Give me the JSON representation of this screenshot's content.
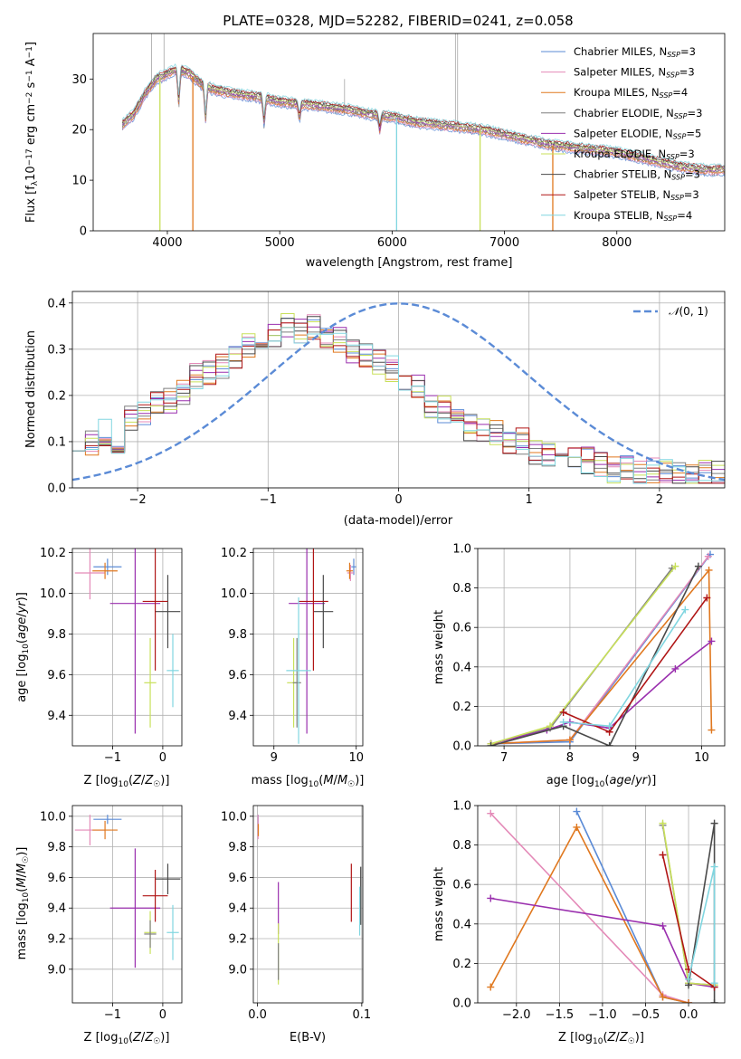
{
  "title": "PLATE=0328, MJD=52282, FIBERID=0241, z=0.058",
  "colors": {
    "Chabrier MILES": "#5b8bd6",
    "Salpeter MILES": "#e48ab8",
    "Kroupa MILES": "#e0781f",
    "Chabrier ELODIE": "#7f7f7f",
    "Salpeter ELODIE": "#9a2fae",
    "Kroupa ELODIE": "#c8e05a",
    "Chabrier STELIB": "#4a4a4a",
    "Salpeter STELIB": "#b01515",
    "Kroupa STELIB": "#80d6e0",
    "normal": "#5b8bd6"
  },
  "chart_data": [
    {
      "id": "spectrum",
      "type": "line",
      "title": "PLATE=0328, MJD=52282, FIBERID=0241, z=0.058",
      "xlabel": "wavelength [Angstrom, rest frame]",
      "ylabel": "Flux [f_λ10^-17 erg cm^-2 s^-1 A^-1]",
      "xlim": [
        3340,
        8960
      ],
      "ylim": [
        0,
        39
      ],
      "xticks": [
        4000,
        5000,
        6000,
        7000,
        8000
      ],
      "yticks": [
        0,
        10,
        20,
        30
      ],
      "grid": false,
      "legend_position": "top-right",
      "legend": [
        {
          "base": "Chabrier MILES, N",
          "sub": "SSP",
          "tail": "=3"
        },
        {
          "base": "Salpeter MILES, N",
          "sub": "SSP",
          "tail": "=3"
        },
        {
          "base": "Kroupa MILES, N",
          "sub": "SSP",
          "tail": "=4"
        },
        {
          "base": "Chabrier ELODIE, N",
          "sub": "SSP",
          "tail": "=3"
        },
        {
          "base": "Salpeter ELODIE, N",
          "sub": "SSP",
          "tail": "=5"
        },
        {
          "base": "Kroupa ELODIE, N",
          "sub": "SSP",
          "tail": "=3"
        },
        {
          "base": "Chabrier STELIB, N",
          "sub": "SSP",
          "tail": "=3"
        },
        {
          "base": "Salpeter STELIB, N",
          "sub": "SSP",
          "tail": "=3"
        },
        {
          "base": "Kroupa STELIB, N",
          "sub": "SSP",
          "tail": "=4"
        }
      ],
      "continuum": {
        "x": [
          3600,
          3700,
          3800,
          3900,
          4000,
          4100,
          4200,
          4300,
          4400,
          4500,
          4600,
          4800,
          5000,
          5200,
          5400,
          5600,
          5800,
          6000,
          6200,
          6400,
          6600,
          6800,
          7000,
          7200,
          7400,
          7600,
          7800,
          8000,
          8200,
          8400,
          8600,
          8800
        ],
        "y": [
          21,
          23,
          27,
          30,
          31,
          32,
          31,
          29,
          28,
          27.5,
          27,
          26.5,
          25.5,
          25,
          24.5,
          24,
          23,
          22.5,
          21.5,
          21,
          20.5,
          20,
          19,
          18,
          17,
          16.5,
          16,
          15.5,
          14.5,
          13.5,
          12.5,
          12
        ]
      },
      "absorption_dips": [
        {
          "x": 3934,
          "depth": 9,
          "color_series": "Kroupa ELODIE",
          "full": true
        },
        {
          "x": 4227,
          "depth": 10,
          "color_series": "Kroupa MILES",
          "full": true
        },
        {
          "x": 6040,
          "depth": 10,
          "color_series": "Kroupa STELIB",
          "full": true
        },
        {
          "x": 6783,
          "depth": 10,
          "color_series": "Kroupa ELODIE",
          "full": true
        },
        {
          "x": 7430,
          "depth": 10,
          "color_series": "Kroupa MILES",
          "full": true
        },
        {
          "x": 4101,
          "depth": 7
        },
        {
          "x": 4340,
          "depth": 7
        },
        {
          "x": 4861,
          "depth": 5
        },
        {
          "x": 5175,
          "depth": 3
        },
        {
          "x": 5890,
          "depth": 3
        }
      ],
      "observed_spikes": [
        {
          "x": 3860,
          "y": 39
        },
        {
          "x": 3970,
          "y": 39
        },
        {
          "x": 6563,
          "y": 39
        },
        {
          "x": 6583,
          "y": 39
        },
        {
          "x": 5577,
          "y": 30
        }
      ]
    },
    {
      "id": "residuals",
      "type": "line",
      "xlabel": "(data-model)/error",
      "ylabel": "Normed distribution",
      "xlim": [
        -2.5,
        2.5
      ],
      "ylim": [
        0,
        0.425
      ],
      "xticks": [
        -2,
        -1,
        0,
        1,
        2
      ],
      "yticks": [
        0.0,
        0.1,
        0.2,
        0.3,
        0.4
      ],
      "grid": true,
      "legend_position": "top-right",
      "legend_label": "N(0,1)",
      "bin_width": 0.1,
      "gauss": {
        "mean": 0,
        "sigma": 1
      },
      "base": [
        0.11,
        0.09,
        0.1,
        0.12,
        0.11,
        0.1,
        0.15,
        0.17,
        0.16,
        0.18,
        0.2,
        0.19,
        0.21,
        0.22,
        0.24,
        0.25,
        0.27,
        0.26,
        0.28,
        0.3,
        0.31,
        0.32,
        0.31,
        0.33,
        0.35,
        0.36,
        0.34,
        0.35,
        0.34,
        0.33,
        0.32,
        0.31,
        0.3,
        0.29,
        0.28,
        0.27,
        0.26,
        0.24,
        0.23,
        0.22,
        0.2,
        0.18,
        0.17,
        0.16,
        0.15,
        0.13,
        0.13,
        0.12,
        0.12,
        0.11,
        0.1,
        0.1,
        0.09,
        0.08,
        0.07,
        0.07,
        0.08,
        0.07,
        0.06,
        0.06,
        0.05,
        0.05,
        0.04,
        0.04,
        0.04,
        0.03,
        0.04,
        0.03,
        0.04,
        0.03,
        0.03,
        0.03,
        0.03,
        0.03,
        0.03
      ],
      "series": [
        "Chabrier MILES",
        "Salpeter MILES",
        "Kroupa MILES",
        "Chabrier ELODIE",
        "Salpeter ELODIE",
        "Kroupa ELODIE",
        "Chabrier STELIB",
        "Salpeter STELIB",
        "Kroupa STELIB"
      ]
    },
    {
      "id": "age_vs_Z",
      "type": "scatter",
      "xlabel": "Z [log10(Z/Z☉)]",
      "ylabel": "age [log10(age/yr)]",
      "xlim": [
        -1.8,
        0.38
      ],
      "ylim": [
        9.25,
        10.22
      ],
      "xticks": [
        -1,
        0
      ],
      "yticks": [
        9.4,
        9.6,
        9.8,
        10.0,
        10.2
      ],
      "grid": true,
      "points": [
        {
          "series": "Chabrier MILES",
          "x": -1.1,
          "xerr": 0.28,
          "y": 10.13,
          "yerr": 0.04
        },
        {
          "series": "Salpeter MILES",
          "x": -1.45,
          "xerr": 0.3,
          "y": 10.1,
          "yerr": 0.13
        },
        {
          "series": "Kroupa MILES",
          "x": -1.15,
          "xerr": 0.25,
          "y": 10.11,
          "yerr": 0.04
        },
        {
          "series": "Salpeter ELODIE",
          "x": -0.55,
          "xerr": 0.5,
          "y": 9.95,
          "yerr": 0.64
        },
        {
          "series": "Kroupa ELODIE",
          "x": -0.25,
          "xerr": 0.12,
          "y": 9.56,
          "yerr": 0.22
        },
        {
          "series": "Chabrier STELIB",
          "x": 0.1,
          "xerr": 0.25,
          "y": 9.91,
          "yerr": 0.18
        },
        {
          "series": "Salpeter STELIB",
          "x": -0.15,
          "xerr": 0.25,
          "y": 9.96,
          "yerr": 0.34
        },
        {
          "series": "Kroupa STELIB",
          "x": 0.2,
          "xerr": 0.12,
          "y": 9.62,
          "yerr": 0.18
        }
      ]
    },
    {
      "id": "age_vs_mass",
      "type": "scatter",
      "xlabel": "mass [log10(M/M☉)]",
      "ylabel": "",
      "xlim": [
        8.75,
        10.08
      ],
      "ylim": [
        9.25,
        10.22
      ],
      "xticks": [
        9,
        10
      ],
      "yticks": [
        9.4,
        9.6,
        9.8,
        10.0,
        10.2
      ],
      "grid": true,
      "points": [
        {
          "series": "Chabrier MILES",
          "x": 9.97,
          "xerr": 0.03,
          "y": 10.13,
          "yerr": 0.04
        },
        {
          "series": "Salpeter MILES",
          "x": 9.93,
          "xerr": 0.04,
          "y": 10.1,
          "yerr": 0.04
        },
        {
          "series": "Kroupa MILES",
          "x": 9.92,
          "xerr": 0.04,
          "y": 10.11,
          "yerr": 0.04
        },
        {
          "series": "Salpeter ELODIE",
          "x": 9.4,
          "xerr": 0.22,
          "y": 9.95,
          "yerr": 0.64
        },
        {
          "series": "Kroupa ELODIE",
          "x": 9.24,
          "xerr": 0.08,
          "y": 9.56,
          "yerr": 0.22
        },
        {
          "series": "Chabrier ELODIE",
          "x": 9.28,
          "xerr": 0.05,
          "y": 9.56,
          "yerr": 0.22
        },
        {
          "series": "Chabrier STELIB",
          "x": 9.6,
          "xerr": 0.12,
          "y": 9.91,
          "yerr": 0.18
        },
        {
          "series": "Salpeter STELIB",
          "x": 9.48,
          "xerr": 0.18,
          "y": 9.96,
          "yerr": 0.34
        },
        {
          "series": "Kroupa STELIB",
          "x": 9.3,
          "xerr": 0.15,
          "y": 9.62,
          "yerr": 0.36
        }
      ]
    },
    {
      "id": "weight_vs_age",
      "type": "line",
      "xlabel": "age [log10(age/yr)]",
      "ylabel": "mass weight",
      "xlim": [
        6.6,
        10.35
      ],
      "ylim": [
        0,
        1
      ],
      "xticks": [
        7,
        8,
        9,
        10
      ],
      "yticks": [
        0.0,
        0.2,
        0.4,
        0.6,
        0.8,
        1.0
      ],
      "grid": true,
      "series": [
        {
          "name": "Chabrier MILES",
          "x": [
            6.8,
            8.0,
            10.13
          ],
          "y": [
            0.01,
            0.02,
            0.97
          ]
        },
        {
          "name": "Salpeter MILES",
          "x": [
            6.8,
            8.0,
            10.1
          ],
          "y": [
            0.01,
            0.03,
            0.96
          ]
        },
        {
          "name": "Kroupa MILES",
          "x": [
            6.8,
            8.0,
            10.11,
            10.15
          ],
          "y": [
            0.01,
            0.03,
            0.89,
            0.08
          ]
        },
        {
          "name": "Chabrier ELODIE",
          "x": [
            6.8,
            7.7,
            9.55
          ],
          "y": [
            0.01,
            0.09,
            0.9
          ]
        },
        {
          "name": "Salpeter ELODIE",
          "x": [
            6.8,
            7.65,
            8.0,
            8.6,
            9.6,
            10.15
          ],
          "y": [
            0.01,
            0.08,
            0.12,
            0.09,
            0.39,
            0.53
          ]
        },
        {
          "name": "Kroupa ELODIE",
          "x": [
            6.8,
            7.7,
            9.6
          ],
          "y": [
            0.01,
            0.1,
            0.91
          ]
        },
        {
          "name": "Chabrier STELIB",
          "x": [
            6.8,
            7.9,
            8.6,
            9.95
          ],
          "y": [
            0.0,
            0.1,
            0.0,
            0.91
          ]
        },
        {
          "name": "Salpeter STELIB",
          "x": [
            7.9,
            8.6,
            10.08
          ],
          "y": [
            0.17,
            0.07,
            0.75
          ]
        },
        {
          "name": "Kroupa STELIB",
          "x": [
            7.9,
            8.6,
            9.75
          ],
          "y": [
            0.12,
            0.1,
            0.69
          ]
        }
      ]
    },
    {
      "id": "mass_vs_Z",
      "type": "scatter",
      "xlabel": "Z [log10(Z/Z☉)]",
      "ylabel": "mass [log10(M/M☉)]",
      "xlim": [
        -1.8,
        0.38
      ],
      "ylim": [
        8.78,
        10.07
      ],
      "xticks": [
        -1,
        0
      ],
      "yticks": [
        9.0,
        9.2,
        9.4,
        9.6,
        9.8,
        10.0
      ],
      "grid": true,
      "points": [
        {
          "series": "Chabrier MILES",
          "x": -1.1,
          "xerr": 0.28,
          "y": 9.98,
          "yerr": 0.03
        },
        {
          "series": "Salpeter MILES",
          "x": -1.45,
          "xerr": 0.3,
          "y": 9.91,
          "yerr": 0.1
        },
        {
          "series": "Kroupa MILES",
          "x": -1.15,
          "xerr": 0.25,
          "y": 9.91,
          "yerr": 0.06
        },
        {
          "series": "Salpeter ELODIE",
          "x": -0.55,
          "xerr": 0.5,
          "y": 9.4,
          "yerr": 0.39
        },
        {
          "series": "Kroupa ELODIE",
          "x": -0.25,
          "xerr": 0.12,
          "y": 9.24,
          "yerr": 0.14
        },
        {
          "series": "Chabrier ELODIE",
          "x": -0.25,
          "xerr": 0.12,
          "y": 9.23,
          "yerr": 0.09
        },
        {
          "series": "Chabrier STELIB",
          "x": 0.1,
          "xerr": 0.25,
          "y": 9.59,
          "yerr": 0.1
        },
        {
          "series": "Salpeter STELIB",
          "x": -0.15,
          "xerr": 0.25,
          "y": 9.48,
          "yerr": 0.17
        },
        {
          "series": "Kroupa STELIB",
          "x": 0.2,
          "xerr": 0.12,
          "y": 9.24,
          "yerr": 0.18
        }
      ]
    },
    {
      "id": "mass_vs_ebv",
      "type": "scatter",
      "xlabel": "E(B-V)",
      "ylabel": "",
      "xlim": [
        -0.004,
        0.101
      ],
      "ylim": [
        8.78,
        10.07
      ],
      "xticks": [
        0.0,
        0.1
      ],
      "yticks": [
        9.0,
        9.2,
        9.4,
        9.6,
        9.8,
        10.0
      ],
      "grid": true,
      "points": [
        {
          "series": "Chabrier MILES",
          "x": 0.0005,
          "xerr": 0,
          "y": 9.98,
          "yerr": 0.03
        },
        {
          "series": "Salpeter MILES",
          "x": 0.0005,
          "xerr": 0,
          "y": 9.93,
          "yerr": 0.08
        },
        {
          "series": "Kroupa MILES",
          "x": 0.0008,
          "xerr": 0,
          "y": 9.91,
          "yerr": 0.04
        },
        {
          "series": "Salpeter ELODIE",
          "x": 0.02,
          "xerr": 0,
          "y": 9.4,
          "yerr": 0.17
        },
        {
          "series": "Kroupa ELODIE",
          "x": 0.02,
          "xerr": 0,
          "y": 9.1,
          "yerr": 0.2
        },
        {
          "series": "Chabrier ELODIE",
          "x": 0.02,
          "xerr": 0,
          "y": 9.05,
          "yerr": 0.12
        },
        {
          "series": "Chabrier STELIB",
          "x": 0.099,
          "xerr": 0,
          "y": 9.48,
          "yerr": 0.19
        },
        {
          "series": "Salpeter STELIB",
          "x": 0.09,
          "xerr": 0,
          "y": 9.5,
          "yerr": 0.19
        },
        {
          "series": "Kroupa STELIB",
          "x": 0.098,
          "xerr": 0,
          "y": 9.38,
          "yerr": 0.16
        }
      ]
    },
    {
      "id": "weight_vs_Z",
      "type": "line",
      "xlabel": "Z [log10(Z/Z☉)]",
      "ylabel": "mass weight",
      "xlim": [
        -2.45,
        0.42
      ],
      "ylim": [
        0,
        1
      ],
      "xticks": [
        -2.0,
        -1.5,
        -1.0,
        -0.5,
        0.0
      ],
      "yticks": [
        0.0,
        0.2,
        0.4,
        0.6,
        0.8,
        1.0
      ],
      "grid": true,
      "series": [
        {
          "name": "Chabrier MILES",
          "x": [
            -1.3,
            -0.3,
            0.0
          ],
          "y": [
            0.97,
            0.03,
            0.0
          ]
        },
        {
          "name": "Salpeter MILES",
          "x": [
            -2.3,
            -0.3,
            0.0
          ],
          "y": [
            0.96,
            0.04,
            0.0
          ]
        },
        {
          "name": "Kroupa MILES",
          "x": [
            -2.3,
            -1.3,
            -0.3,
            0.0
          ],
          "y": [
            0.08,
            0.89,
            0.03,
            0.0
          ]
        },
        {
          "name": "Chabrier ELODIE",
          "x": [
            -0.3,
            0.0,
            0.3
          ],
          "y": [
            0.9,
            0.1,
            0.09
          ]
        },
        {
          "name": "Salpeter ELODIE",
          "x": [
            -2.3,
            -0.3,
            0.0,
            0.3
          ],
          "y": [
            0.53,
            0.39,
            0.1,
            0.08
          ]
        },
        {
          "name": "Kroupa ELODIE",
          "x": [
            -0.3,
            0.0,
            0.3
          ],
          "y": [
            0.91,
            0.1,
            0.09
          ]
        },
        {
          "name": "Chabrier STELIB",
          "x": [
            0.0,
            0.3,
            0.3
          ],
          "y": [
            0.09,
            0.91,
            0.0
          ]
        },
        {
          "name": "Salpeter STELIB",
          "x": [
            -0.3,
            0.0,
            0.3
          ],
          "y": [
            0.75,
            0.17,
            0.08
          ]
        },
        {
          "name": "Kroupa STELIB",
          "x": [
            0.0,
            0.3,
            0.3
          ],
          "y": [
            0.12,
            0.69,
            0.1
          ]
        }
      ]
    }
  ]
}
